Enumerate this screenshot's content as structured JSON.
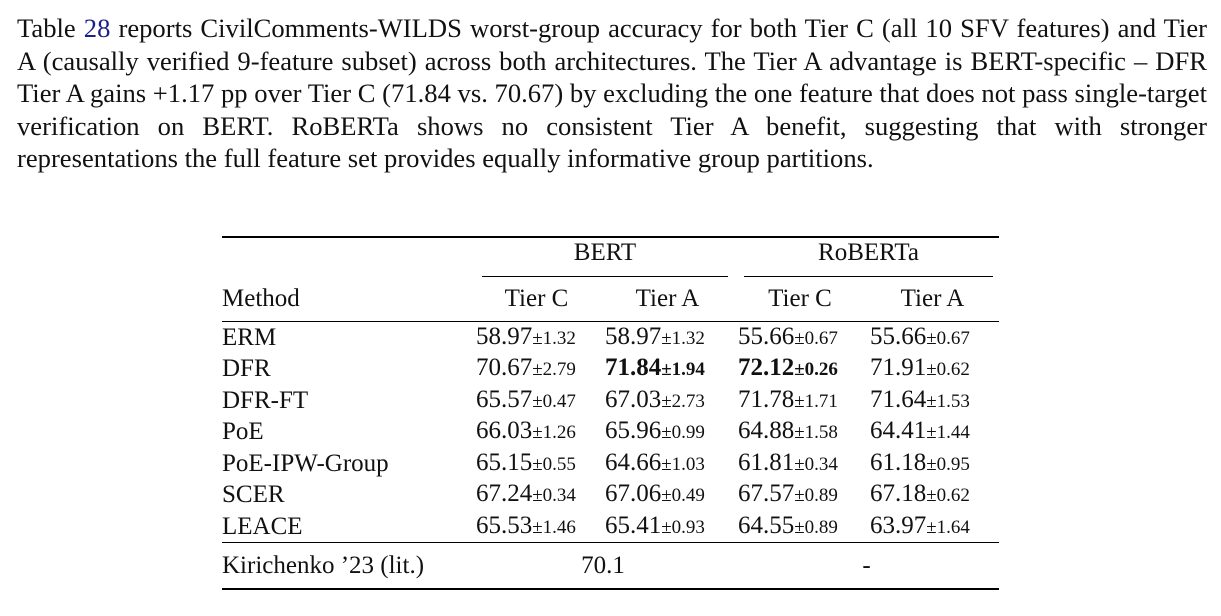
{
  "paragraph": {
    "pre": "Table ",
    "ref": "28",
    "post": " reports CivilComments-WILDS worst-group accuracy for both Tier C (all 10 SFV features) and Tier A (causally verified 9-feature subset) across both architectures. The Tier A advantage is BERT-specific – DFR Tier A gains +1.17 pp over Tier C (71.84 vs. 70.67) by excluding the one feature that does not pass single-target verification on BERT. RoBERTa shows no consistent Tier A benefit, suggesting that with stronger representations the full feature set provides equally informative group partitions."
  },
  "table": {
    "groups": [
      "BERT",
      "RoBERTa"
    ],
    "method_header": "Method",
    "tier_headers": [
      "Tier C",
      "Tier A",
      "Tier C",
      "Tier A"
    ],
    "rows": [
      {
        "method": "ERM",
        "cells": [
          {
            "v": "58.97",
            "sd": "±1.32",
            "bold": false
          },
          {
            "v": "58.97",
            "sd": "±1.32",
            "bold": false
          },
          {
            "v": "55.66",
            "sd": "±0.67",
            "bold": false
          },
          {
            "v": "55.66",
            "sd": "±0.67",
            "bold": false
          }
        ]
      },
      {
        "method": "DFR",
        "cells": [
          {
            "v": "70.67",
            "sd": "±2.79",
            "bold": false
          },
          {
            "v": "71.84",
            "sd": "±1.94",
            "bold": true
          },
          {
            "v": "72.12",
            "sd": "±0.26",
            "bold": true
          },
          {
            "v": "71.91",
            "sd": "±0.62",
            "bold": false
          }
        ]
      },
      {
        "method": "DFR-FT",
        "cells": [
          {
            "v": "65.57",
            "sd": "±0.47",
            "bold": false
          },
          {
            "v": "67.03",
            "sd": "±2.73",
            "bold": false
          },
          {
            "v": "71.78",
            "sd": "±1.71",
            "bold": false
          },
          {
            "v": "71.64",
            "sd": "±1.53",
            "bold": false
          }
        ]
      },
      {
        "method": "PoE",
        "cells": [
          {
            "v": "66.03",
            "sd": "±1.26",
            "bold": false
          },
          {
            "v": "65.96",
            "sd": "±0.99",
            "bold": false
          },
          {
            "v": "64.88",
            "sd": "±1.58",
            "bold": false
          },
          {
            "v": "64.41",
            "sd": "±1.44",
            "bold": false
          }
        ]
      },
      {
        "method": "PoE-IPW-Group",
        "cells": [
          {
            "v": "65.15",
            "sd": "±0.55",
            "bold": false
          },
          {
            "v": "64.66",
            "sd": "±1.03",
            "bold": false
          },
          {
            "v": "61.81",
            "sd": "±0.34",
            "bold": false
          },
          {
            "v": "61.18",
            "sd": "±0.95",
            "bold": false
          }
        ]
      },
      {
        "method": "SCER",
        "cells": [
          {
            "v": "67.24",
            "sd": "±0.34",
            "bold": false
          },
          {
            "v": "67.06",
            "sd": "±0.49",
            "bold": false
          },
          {
            "v": "67.57",
            "sd": "±0.89",
            "bold": false
          },
          {
            "v": "67.18",
            "sd": "±0.62",
            "bold": false
          }
        ]
      },
      {
        "method": "LEACE",
        "cells": [
          {
            "v": "65.53",
            "sd": "±1.46",
            "bold": false
          },
          {
            "v": "65.41",
            "sd": "±0.93",
            "bold": false
          },
          {
            "v": "64.55",
            "sd": "±0.89",
            "bold": false
          },
          {
            "v": "63.97",
            "sd": "±1.64",
            "bold": false
          }
        ]
      }
    ],
    "literature": {
      "method": "Kirichenko ’23 (lit.)",
      "bert": "70.1",
      "roberta": "-"
    }
  }
}
